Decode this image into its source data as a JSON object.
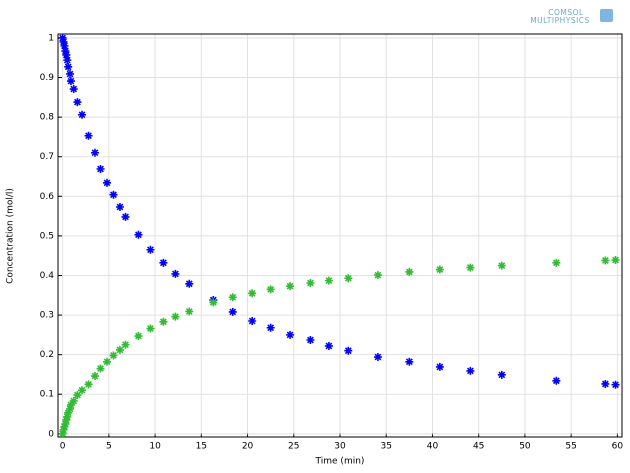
{
  "chart_data": {
    "type": "scatter",
    "xlabel": "Time (min)",
    "ylabel": "Concentration (mol/l)",
    "watermark": [
      "COMSOL",
      "MULTIPHYSICS"
    ],
    "x": [
      0,
      0.1,
      0.2,
      0.3,
      0.4,
      0.5,
      0.6,
      0.8,
      0.9,
      1.2,
      1.6,
      2.1,
      2.8,
      3.5,
      4.1,
      4.8,
      5.5,
      6.2,
      6.8,
      8.2,
      9.5,
      10.9,
      12.2,
      13.7,
      16.3,
      18.4,
      20.5,
      22.5,
      24.6,
      26.8,
      28.8,
      30.9,
      34.1,
      37.5,
      40.8,
      44.1,
      47.5,
      53.4,
      58.7,
      59.8
    ],
    "series": [
      {
        "color": "#0000ff",
        "values": [
          1.0,
          0.99,
          0.98,
          0.967,
          0.957,
          0.944,
          0.927,
          0.909,
          0.891,
          0.871,
          0.838,
          0.806,
          0.753,
          0.71,
          0.669,
          0.634,
          0.604,
          0.573,
          0.548,
          0.503,
          0.465,
          0.432,
          0.404,
          0.379,
          0.338,
          0.308,
          0.285,
          0.268,
          0.25,
          0.237,
          0.222,
          0.21,
          0.194,
          0.182,
          0.169,
          0.159,
          0.149,
          0.134,
          0.126,
          0.124
        ]
      },
      {
        "color": "#33bb33",
        "values": [
          0,
          0.01,
          0.018,
          0.025,
          0.035,
          0.043,
          0.053,
          0.063,
          0.073,
          0.083,
          0.098,
          0.11,
          0.125,
          0.146,
          0.165,
          0.182,
          0.198,
          0.212,
          0.225,
          0.247,
          0.266,
          0.283,
          0.296,
          0.309,
          0.332,
          0.345,
          0.355,
          0.365,
          0.373,
          0.381,
          0.387,
          0.393,
          0.401,
          0.409,
          0.415,
          0.42,
          0.425,
          0.432,
          0.438,
          0.439
        ]
      }
    ],
    "xlim": [
      -0.5,
      60.5
    ],
    "ylim": [
      -0.008,
      1.01
    ],
    "xticks": [
      0,
      5,
      10,
      15,
      20,
      25,
      30,
      35,
      40,
      45,
      50,
      55,
      60
    ],
    "yticks": [
      0,
      0.1,
      0.2,
      0.3,
      0.4,
      0.5,
      0.6,
      0.7,
      0.8,
      0.9,
      1
    ],
    "grid": true
  }
}
